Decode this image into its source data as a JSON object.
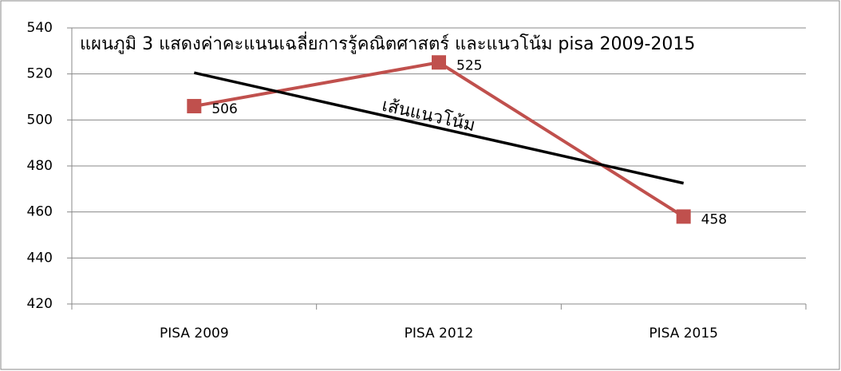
{
  "chart_data": {
    "type": "line",
    "title": "แผนภูมิ 3 แสดงค่าคะแนนเฉลี่ยการรู้คณิตศาสตร์ และแนวโน้ม  pisa 2009-2015",
    "categories": [
      "PISA 2009",
      "PISA 2012",
      "PISA 2015"
    ],
    "series": [
      {
        "color": "#c0504d",
        "values": [
          506,
          525,
          458
        ],
        "markers": true,
        "data_labels": true
      },
      {
        "name": "เส้นแนวโน้ม",
        "color": "#000000",
        "values": [
          520.5,
          496.5,
          472.5
        ],
        "markers": false,
        "data_labels": false
      }
    ],
    "ylim": [
      420,
      540
    ],
    "yticks": [
      420,
      440,
      460,
      480,
      500,
      520,
      540
    ],
    "grid": true
  }
}
